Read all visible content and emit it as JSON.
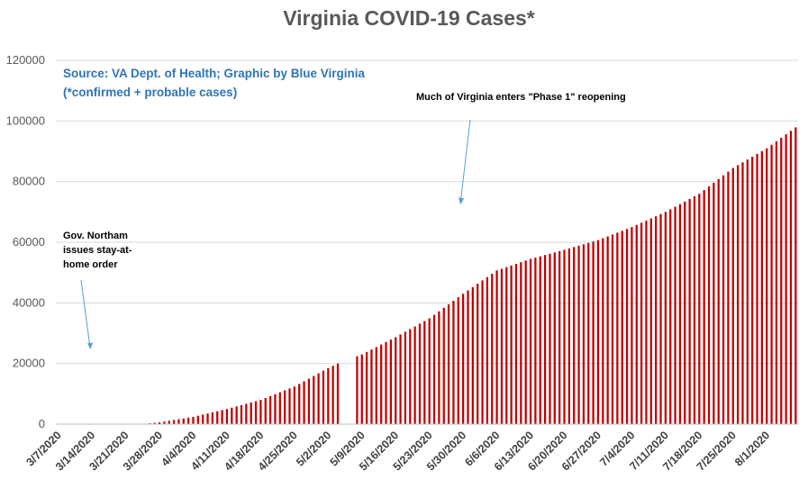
{
  "chart_data": {
    "type": "bar",
    "title": "Virginia COVID-19 Cases*",
    "subtitle_lines": [
      "Source: VA Dept. of Health; Graphic by Blue Virginia",
      "(*confirmed + probable cases)"
    ],
    "xlabel": "",
    "ylabel": "",
    "ylim": [
      0,
      120000
    ],
    "yticks": [
      0,
      20000,
      40000,
      60000,
      80000,
      100000,
      120000
    ],
    "ytick_labels": [
      "0",
      "20000",
      "40000",
      "60000",
      "80000",
      "100000",
      "120000"
    ],
    "x_start": "3/7/2020",
    "x_end": "8/7/2020",
    "xtick_labels": [
      "3/7/2020",
      "3/14/2020",
      "3/21/2020",
      "3/28/2020",
      "4/4/2020",
      "4/11/2020",
      "4/18/2020",
      "4/25/2020",
      "5/2/2020",
      "5/9/2020",
      "5/16/2020",
      "5/23/2020",
      "5/30/2020",
      "6/6/2020",
      "6/13/2020",
      "6/20/2020",
      "6/27/2020",
      "7/4/2020",
      "7/11/2020",
      "7/18/2020",
      "7/25/2020",
      "8/1/2020"
    ],
    "missing_dates": [
      "5/5/2020",
      "5/6/2020",
      "5/7/2020"
    ],
    "anchors": [
      [
        "3/7/2020",
        0
      ],
      [
        "3/24/2020",
        0
      ],
      [
        "3/28/2020",
        600
      ],
      [
        "4/4/2020",
        2400
      ],
      [
        "4/11/2020",
        5000
      ],
      [
        "4/18/2020",
        8000
      ],
      [
        "4/25/2020",
        12400
      ],
      [
        "5/2/2020",
        18500
      ],
      [
        "5/4/2020",
        20000
      ],
      [
        "5/9/2020",
        23000
      ],
      [
        "5/16/2020",
        28700
      ],
      [
        "5/23/2020",
        34900
      ],
      [
        "5/30/2020",
        43000
      ],
      [
        "6/6/2020",
        50700
      ],
      [
        "6/13/2020",
        54500
      ],
      [
        "6/20/2020",
        57500
      ],
      [
        "6/27/2020",
        60700
      ],
      [
        "7/4/2020",
        65000
      ],
      [
        "7/11/2020",
        70000
      ],
      [
        "7/18/2020",
        76000
      ],
      [
        "7/25/2020",
        84500
      ],
      [
        "8/1/2020",
        91000
      ],
      [
        "8/7/2020",
        97900
      ]
    ],
    "grid": true,
    "bar_color": "#c00000",
    "annotations": [
      {
        "lines": [
          "Gov. Northam",
          "issues stay-at-",
          "home order"
        ],
        "arrow_to": [
          "3/14/2020",
          25000
        ]
      },
      {
        "lines": [
          "Much of Virginia enters \"Phase 1\" reopening"
        ],
        "arrow_to": [
          "5/30/2020",
          73000
        ]
      }
    ]
  },
  "colors": {
    "grid": "#d9d9d9",
    "axis": "#bfbfbf",
    "arrow": "#5b9bd5",
    "title": "#595959",
    "source": "#2e75b6"
  }
}
